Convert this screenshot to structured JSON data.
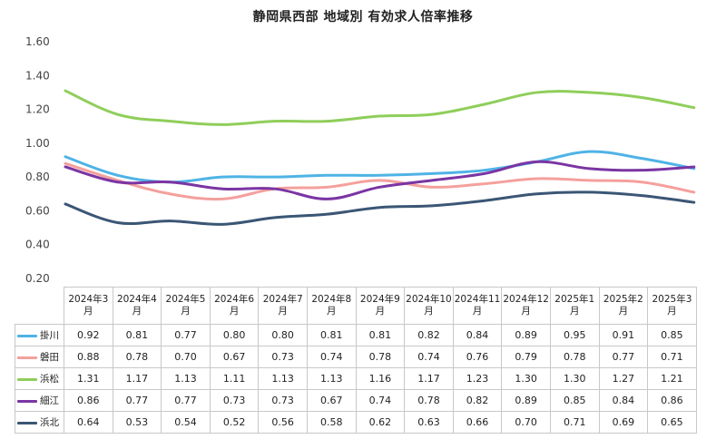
{
  "chart_data": {
    "type": "line",
    "title": "静岡県西部 地域別 有効求人倍率推移",
    "ylim": [
      0.2,
      1.6
    ],
    "yticks": [
      "1.60",
      "1.40",
      "1.20",
      "1.00",
      "0.80",
      "0.60",
      "0.40",
      "0.20"
    ],
    "ytick_values": [
      1.6,
      1.4,
      1.2,
      1.0,
      0.8,
      0.6,
      0.4,
      0.2
    ],
    "grid": false,
    "legend": "table-bottom",
    "categories": [
      "2024年3月",
      "2024年4月",
      "2024年5月",
      "2024年6月",
      "2024年7月",
      "2024年8月",
      "2024年9月",
      "2024年10月",
      "2024年11月",
      "2024年12月",
      "2025年1月",
      "2025年2月",
      "2025年3月"
    ],
    "series": [
      {
        "name": "掛川",
        "color": "#4fb3e6",
        "values": [
          0.92,
          0.81,
          0.77,
          0.8,
          0.8,
          0.81,
          0.81,
          0.82,
          0.84,
          0.89,
          0.95,
          0.91,
          0.85
        ]
      },
      {
        "name": "磐田",
        "color": "#f4a09c",
        "values": [
          0.88,
          0.78,
          0.7,
          0.67,
          0.73,
          0.74,
          0.78,
          0.74,
          0.76,
          0.79,
          0.78,
          0.77,
          0.71
        ]
      },
      {
        "name": "浜松",
        "color": "#8fce5a",
        "values": [
          1.31,
          1.17,
          1.13,
          1.11,
          1.13,
          1.13,
          1.16,
          1.17,
          1.23,
          1.3,
          1.3,
          1.27,
          1.21
        ]
      },
      {
        "name": "細江",
        "color": "#7a35a3",
        "values": [
          0.86,
          0.77,
          0.77,
          0.73,
          0.73,
          0.67,
          0.74,
          0.78,
          0.82,
          0.89,
          0.85,
          0.84,
          0.86
        ]
      },
      {
        "name": "浜北",
        "color": "#3b5675",
        "values": [
          0.64,
          0.53,
          0.54,
          0.52,
          0.56,
          0.58,
          0.62,
          0.63,
          0.66,
          0.7,
          0.71,
          0.69,
          0.65
        ]
      }
    ],
    "value_labels": [
      [
        "0.92",
        "0.81",
        "0.77",
        "0.80",
        "0.80",
        "0.81",
        "0.81",
        "0.82",
        "0.84",
        "0.89",
        "0.95",
        "0.91",
        "0.85"
      ],
      [
        "0.88",
        "0.78",
        "0.70",
        "0.67",
        "0.73",
        "0.74",
        "0.78",
        "0.74",
        "0.76",
        "0.79",
        "0.78",
        "0.77",
        "0.71"
      ],
      [
        "1.31",
        "1.17",
        "1.13",
        "1.11",
        "1.13",
        "1.13",
        "1.16",
        "1.17",
        "1.23",
        "1.30",
        "1.30",
        "1.27",
        "1.21"
      ],
      [
        "0.86",
        "0.77",
        "0.77",
        "0.73",
        "0.73",
        "0.67",
        "0.74",
        "0.78",
        "0.82",
        "0.89",
        "0.85",
        "0.84",
        "0.86"
      ],
      [
        "0.64",
        "0.53",
        "0.54",
        "0.52",
        "0.56",
        "0.58",
        "0.62",
        "0.63",
        "0.66",
        "0.70",
        "0.71",
        "0.69",
        "0.65"
      ]
    ]
  }
}
